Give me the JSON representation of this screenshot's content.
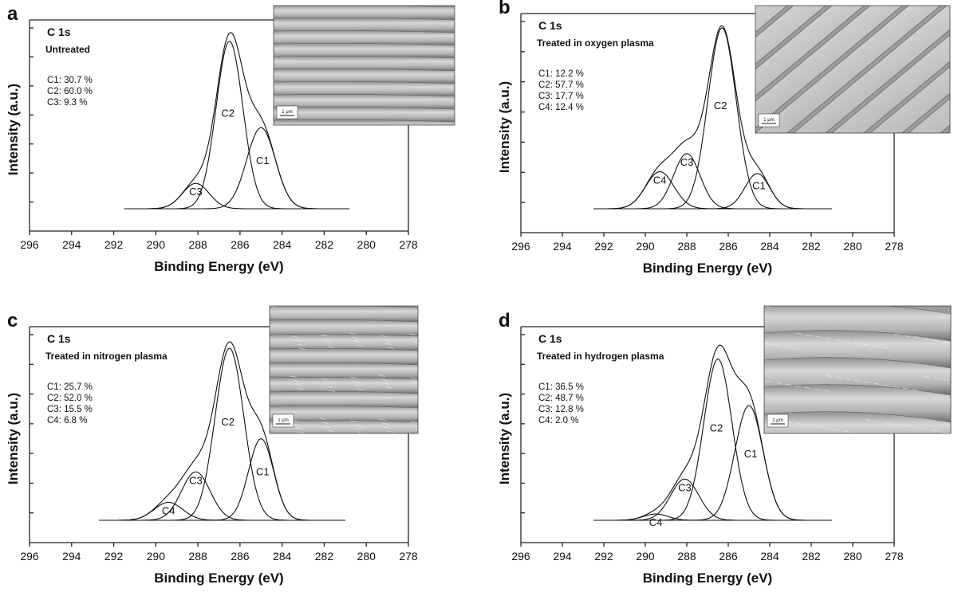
{
  "chart_data": [
    {
      "type": "line",
      "panel": "a",
      "heading": "C 1s",
      "condition": "Untreated",
      "xlabel": "Binding Energy (eV)",
      "ylabel": "Intensity (a.u.)",
      "xlim": [
        296,
        278
      ],
      "x_ticks": [
        "296",
        "294",
        "292",
        "290",
        "288",
        "286",
        "284",
        "282",
        "280",
        "278"
      ],
      "composition": [
        "C1: 30.7 %",
        "C2: 60.0 %",
        "C3: 9.3 %"
      ],
      "fit_range": [
        291.5,
        280.8
      ],
      "peaks": [
        {
          "name": "C1",
          "center_eV": 285.0,
          "height": 0.465,
          "fwhm_eV": 1.6
        },
        {
          "name": "C2",
          "center_eV": 286.5,
          "height": 0.96,
          "fwhm_eV": 1.5
        },
        {
          "name": "C3",
          "center_eV": 288.1,
          "height": 0.145,
          "fwhm_eV": 1.5
        }
      ]
    },
    {
      "type": "line",
      "panel": "b",
      "heading": "C 1s",
      "condition": "Treated in oxygen plasma",
      "xlabel": "Binding Energy (eV)",
      "ylabel": "Intensity (a.u.)",
      "xlim": [
        296,
        278
      ],
      "x_ticks": [
        "296",
        "294",
        "292",
        "290",
        "288",
        "286",
        "284",
        "282",
        "280",
        "278"
      ],
      "composition": [
        "C1: 12.2 %",
        "C2: 57.7 %",
        "C3: 17.7 %",
        "C4: 12.4 %"
      ],
      "fit_range": [
        292.5,
        281.0
      ],
      "peaks": [
        {
          "name": "C1",
          "center_eV": 284.6,
          "height": 0.195,
          "fwhm_eV": 1.4
        },
        {
          "name": "C2",
          "center_eV": 286.3,
          "height": 1.0,
          "fwhm_eV": 1.6
        },
        {
          "name": "C3",
          "center_eV": 288.0,
          "height": 0.305,
          "fwhm_eV": 1.5
        },
        {
          "name": "C4",
          "center_eV": 289.3,
          "height": 0.205,
          "fwhm_eV": 1.6
        }
      ]
    },
    {
      "type": "line",
      "panel": "c",
      "heading": "C 1s",
      "condition": "Treated in nitrogen plasma",
      "xlabel": "Binding Energy (eV)",
      "ylabel": "Intensity (a.u.)",
      "xlim": [
        296,
        278
      ],
      "x_ticks": [
        "296",
        "294",
        "292",
        "290",
        "288",
        "286",
        "284",
        "282",
        "280",
        "278"
      ],
      "composition": [
        "C1: 25.7 %",
        "C2: 52.0 %",
        "C3: 15.5 %",
        "C4: 6.8 %"
      ],
      "fit_range": [
        292.7,
        281.0
      ],
      "peaks": [
        {
          "name": "C1",
          "center_eV": 285.0,
          "height": 0.455,
          "fwhm_eV": 1.4
        },
        {
          "name": "C2",
          "center_eV": 286.5,
          "height": 0.96,
          "fwhm_eV": 1.6
        },
        {
          "name": "C3",
          "center_eV": 288.1,
          "height": 0.27,
          "fwhm_eV": 1.6
        },
        {
          "name": "C4",
          "center_eV": 289.4,
          "height": 0.1,
          "fwhm_eV": 1.6
        }
      ]
    },
    {
      "type": "line",
      "panel": "d",
      "heading": "C 1s",
      "condition": "Treated in hydrogen plasma",
      "xlabel": "Binding Energy (eV)",
      "ylabel": "Intensity (a.u.)",
      "xlim": [
        296,
        278
      ],
      "x_ticks": [
        "296",
        "294",
        "292",
        "290",
        "288",
        "286",
        "284",
        "282",
        "280",
        "278"
      ],
      "composition": [
        "C1: 36.5 %",
        "C2: 48.7 %",
        "C3: 12.8 %",
        "C4: 2.0 %"
      ],
      "fit_range": [
        292.5,
        281.0
      ],
      "peaks": [
        {
          "name": "C1",
          "center_eV": 285.0,
          "height": 0.64,
          "fwhm_eV": 1.6
        },
        {
          "name": "C2",
          "center_eV": 286.5,
          "height": 0.9,
          "fwhm_eV": 1.6
        },
        {
          "name": "C3",
          "center_eV": 288.1,
          "height": 0.23,
          "fwhm_eV": 1.6
        },
        {
          "name": "C4",
          "center_eV": 289.5,
          "height": 0.035,
          "fwhm_eV": 1.4
        }
      ]
    }
  ],
  "sem_insets": [
    {
      "scale_bar": "1 μm",
      "texture": "smooth-fibers"
    },
    {
      "scale_bar": "1 μm",
      "texture": "diagonal-fibers"
    },
    {
      "scale_bar": "1 μm",
      "texture": "striated-fibers"
    },
    {
      "scale_bar": "1 μm",
      "texture": "rough-fibers"
    }
  ],
  "colors": {
    "ink": "#111111",
    "sem_light": "#c9c9c9",
    "sem_dark": "#5a5a5a"
  }
}
